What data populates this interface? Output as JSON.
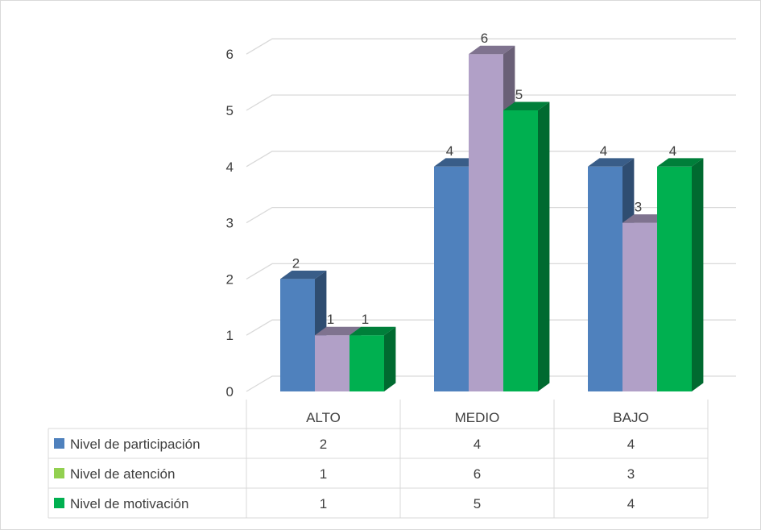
{
  "chart_data": {
    "type": "bar",
    "subtype": "3d-clustered-column-with-data-table",
    "categories": [
      "ALTO",
      "MEDIO",
      "BAJO"
    ],
    "series": [
      {
        "name": "Nivel de participación",
        "values": [
          2,
          4,
          4
        ],
        "color": "#4f81bd",
        "legend_color": "#4f81bd"
      },
      {
        "name": "Nivel de atención",
        "values": [
          1,
          6,
          3
        ],
        "color": "#b1a0c7",
        "legend_color": "#92d050"
      },
      {
        "name": "Nivel de motivación",
        "values": [
          1,
          5,
          4
        ],
        "color": "#00b050",
        "legend_color": "#00b050"
      }
    ],
    "yticks": [
      "0",
      "1",
      "2",
      "3",
      "4",
      "5",
      "6"
    ],
    "ylim": [
      0,
      6
    ],
    "grid": true,
    "data_labels": true,
    "legend": "data-table"
  }
}
